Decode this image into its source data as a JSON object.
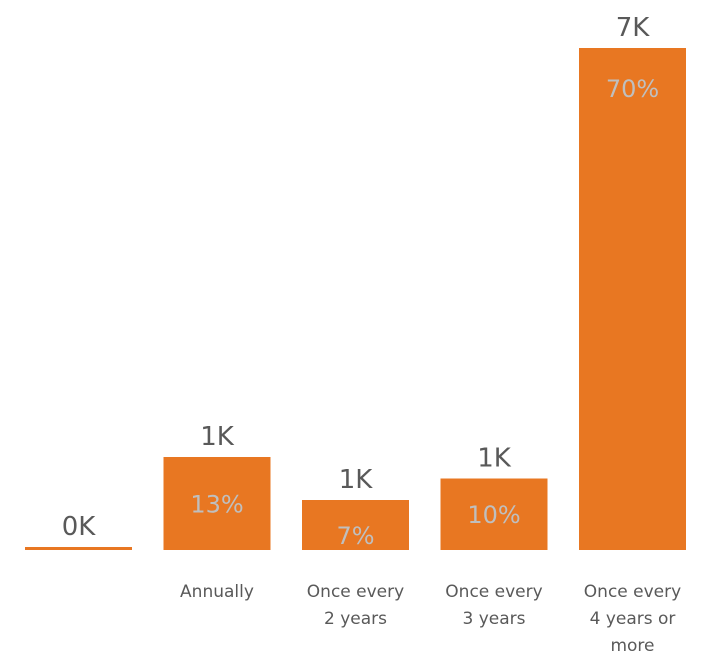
{
  "chart_data": {
    "type": "bar",
    "title": "",
    "xlabel": "",
    "ylabel": "",
    "ylim": [
      0,
      7
    ],
    "grid": false,
    "legend": "none",
    "categories": [
      {
        "label_lines": [
          ""
        ]
      },
      {
        "label_lines": [
          "Annually"
        ]
      },
      {
        "label_lines": [
          "Once every",
          "2 years"
        ]
      },
      {
        "label_lines": [
          "Once every",
          "3 years"
        ]
      },
      {
        "label_lines": [
          "Once every",
          "4 years or",
          "more"
        ]
      }
    ],
    "values": [
      0.01,
      1.3,
      0.7,
      1.0,
      7.0
    ],
    "value_labels": [
      "0K",
      "1K",
      "1K",
      "1K",
      "7K"
    ],
    "percent_labels": [
      "",
      "13%",
      "7%",
      "10%",
      "70%"
    ],
    "colors": {
      "bar": "#E87722",
      "total_label": "#595959",
      "percent_label": "#BFBFBF",
      "category_label": "#595959"
    }
  }
}
